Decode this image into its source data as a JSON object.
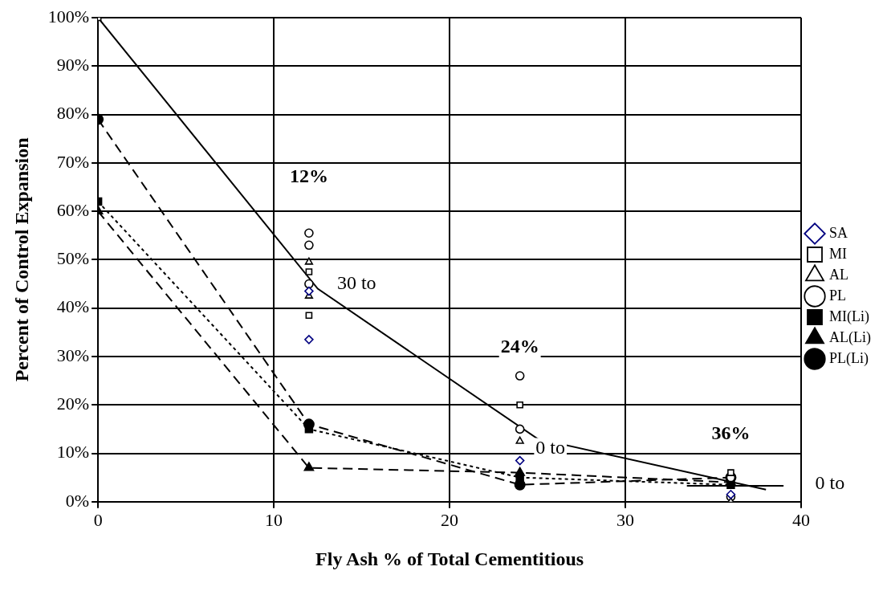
{
  "chart_data": {
    "type": "scatter",
    "xlabel": "Fly Ash % of Total Cementitious",
    "ylabel": "Percent of Control Expansion",
    "xlim": [
      0,
      40
    ],
    "xticks": [
      0,
      10,
      20,
      30,
      40
    ],
    "ylim": [
      0,
      100
    ],
    "yticks": [
      {
        "value": 0,
        "label": "0%"
      },
      {
        "value": 10,
        "label": "10%"
      },
      {
        "value": 20,
        "label": "20%"
      },
      {
        "value": 30,
        "label": "30%"
      },
      {
        "value": 40,
        "label": "40%"
      },
      {
        "value": 50,
        "label": "50%"
      },
      {
        "value": 60,
        "label": "60%"
      },
      {
        "value": 70,
        "label": "70%"
      },
      {
        "value": 80,
        "label": "80%"
      },
      {
        "value": 90,
        "label": "90%"
      },
      {
        "value": 100,
        "label": "100%"
      }
    ],
    "grid": true,
    "legend": "right",
    "series": [
      {
        "name": "SA",
        "type": "scatter",
        "marker": "diamond",
        "color": "#000080",
        "x": [
          12,
          12,
          24,
          36
        ],
        "values": [
          43.5,
          33.5,
          8.5,
          1.5
        ]
      },
      {
        "name": "MI",
        "type": "scatter",
        "marker": "square",
        "color": "#000000",
        "x": [
          0,
          12,
          12,
          24,
          36
        ],
        "values": [
          100,
          47.5,
          38.5,
          20,
          6
        ]
      },
      {
        "name": "AL",
        "type": "scatter",
        "marker": "triangle",
        "color": "#000000",
        "x": [
          12,
          12,
          24,
          36
        ],
        "values": [
          49.5,
          42.5,
          12.5,
          0
        ]
      },
      {
        "name": "PL",
        "type": "scatter",
        "marker": "circle",
        "color": "#000000",
        "x": [
          12,
          12,
          12,
          24,
          24,
          36,
          36
        ],
        "values": [
          55.5,
          53,
          45,
          26,
          15,
          5,
          1
        ]
      },
      {
        "name": "MI(Li)",
        "type": "line",
        "marker": "square",
        "line_style": "dotted",
        "color": "#000000",
        "x": [
          0,
          12,
          24,
          36
        ],
        "values": [
          62,
          15,
          5,
          3.5
        ]
      },
      {
        "name": "AL(Li)",
        "type": "line",
        "marker": "triangle",
        "line_style": "dashed",
        "color": "#000000",
        "x": [
          0,
          12,
          24,
          36
        ],
        "values": [
          60,
          7,
          6,
          4
        ]
      },
      {
        "name": "PL(Li)",
        "type": "line",
        "marker": "circle",
        "line_style": "dashed",
        "color": "#000000",
        "x": [
          0,
          12,
          24,
          36
        ],
        "values": [
          79,
          16,
          3.5,
          5
        ]
      },
      {
        "type": "line",
        "marker": "none",
        "line_style": "solid",
        "color": "#000000",
        "x": [
          0,
          12.5,
          25,
          38
        ],
        "values": [
          100,
          44,
          13,
          2.5
        ]
      },
      {
        "type": "line",
        "marker": "none",
        "line_style": "solid",
        "color": "#000000",
        "x": [
          33.5,
          39
        ],
        "values": [
          3.3,
          3.3
        ]
      }
    ],
    "annotations": [
      "12%",
      "30 to",
      "24%",
      "0 to",
      "36%",
      "0 to"
    ]
  }
}
